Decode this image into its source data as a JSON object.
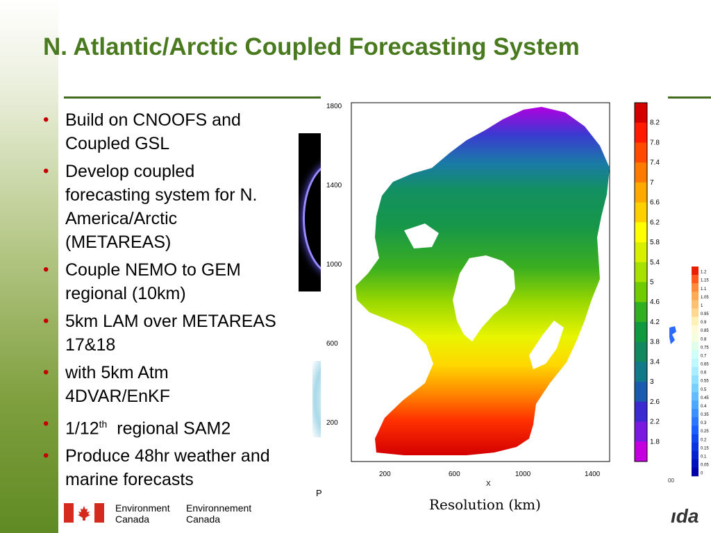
{
  "slide": {
    "title": "N. Atlantic/Arctic Coupled Forecasting System",
    "bullets": [
      {
        "text": "Build on CNOOFS and Coupled GSL"
      },
      {
        "text": "Develop coupled forecasting system for N. America/Arctic (METAREAS)"
      },
      {
        "text": "Couple NEMO to GEM regional (10km)"
      },
      {
        "text": "5km LAM over METAREAS 17&18"
      },
      {
        "text": "with 5km Atm 4DVAR/EnKF"
      },
      {
        "text_pre": "1/12",
        "sup": "th",
        "text_post": "  regional SAM2"
      },
      {
        "text": "Produce 48hr weather and marine forecasts"
      }
    ],
    "bullet_color": "#c00000",
    "title_color": "#4a7a1f"
  },
  "figure": {
    "x_label": "X",
    "x_ticks": [
      "200",
      "600",
      "1000",
      "1400"
    ],
    "y_ticks": [
      "1800",
      "1400",
      "1000",
      "600",
      "200"
    ],
    "caption": "Resolution (km)",
    "colorbar_labels": [
      "8.2",
      "7.8",
      "7.4",
      "7",
      "6.6",
      "6.2",
      "5.8",
      "5.4",
      "5",
      "4.6",
      "4.2",
      "3.8",
      "3.4",
      "3",
      "2.6",
      "2.2",
      "1.8"
    ],
    "colorbar_colors": [
      "#d40000",
      "#ff1a00",
      "#ff4a00",
      "#ff7a00",
      "#ffa800",
      "#ffd000",
      "#ffff00",
      "#d8f000",
      "#a8e000",
      "#70cc00",
      "#30b020",
      "#109a40",
      "#108860",
      "#107a88",
      "#1a5ab0",
      "#3a2ad0",
      "#7a1ae0",
      "#c400e0"
    ]
  },
  "second_colorbar": {
    "labels": [
      "1.2",
      "1.15",
      "1.1",
      "1.05",
      "1",
      "0.95",
      "0.9",
      "0.85",
      "0.8",
      "0.75",
      "0.7",
      "0.65",
      "0.6",
      "0.55",
      "0.5",
      "0.45",
      "0.4",
      "0.35",
      "0.3",
      "0.25",
      "0.2",
      "0.15",
      "0.1",
      "0.05",
      "0"
    ],
    "colors": [
      "#e82000",
      "#ff5a1a",
      "#ff8a3a",
      "#ffaa55",
      "#ffc070",
      "#ffd890",
      "#fff0b8",
      "#fffad8",
      "#f4ffe0",
      "#e0ffea",
      "#cffff6",
      "#bff6ff",
      "#a8eeff",
      "#90e0ff",
      "#78d0ff",
      "#62bcff",
      "#4aa8ff",
      "#3a90ff",
      "#2a78ff",
      "#1a60ff",
      "#1048ee",
      "#0a34dd",
      "#0620cc",
      "#0010bb",
      "#0000aa"
    ]
  },
  "overlay": {
    "p_text": "P",
    "tiny_text": "00",
    "ida_text": "ıda"
  },
  "footer": {
    "name_en_line1": "Environment",
    "name_en_line2": "Canada",
    "name_fr_line1": "Environnement",
    "name_fr_line2": "Canada",
    "flag_red": "#d52b1e"
  }
}
